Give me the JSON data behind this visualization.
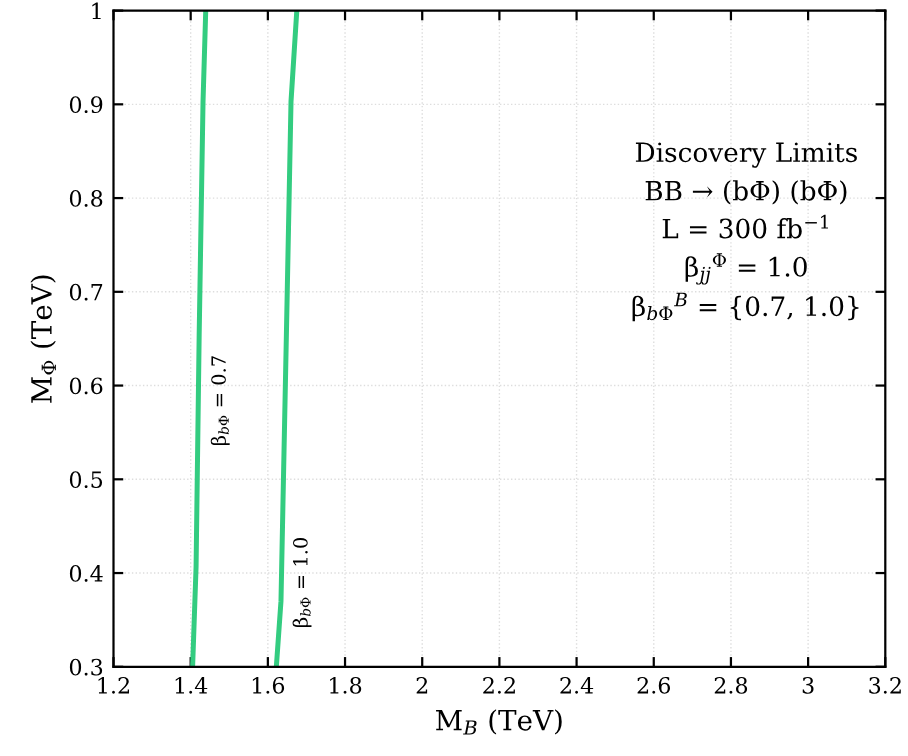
{
  "chart_data": {
    "type": "line",
    "xlabel": "M$_{B}$ (TeV)",
    "ylabel": "M$_{Φ}$ (TeV)",
    "series": [
      {
        "name": "β$_{bΦ}$ = 0.7",
        "color": "#33cc80",
        "x": [
          1.405,
          1.414,
          1.422,
          1.432,
          1.439
        ],
        "values": [
          0.3,
          0.407,
          0.654,
          0.903,
          1.0
        ]
      },
      {
        "name": "β$_{bΦ}$ = 1.0",
        "color": "#33cc80",
        "x": [
          1.622,
          1.634,
          1.648,
          1.66,
          1.675
        ],
        "values": [
          0.3,
          0.37,
          0.654,
          0.903,
          1.0
        ]
      }
    ],
    "annotations": [
      "Discovery Limits",
      "BB → (bΦ) (bΦ)",
      "L = 300 fb$^{−1}$",
      "β$_{jj}$$^{Φ}$ = 1.0",
      "β$_{bΦ}$$^{B}$ = {0.7, 1.0}"
    ],
    "xlim": [
      1.2,
      3.2
    ],
    "ylim": [
      0.3,
      1
    ],
    "xticks": [
      1.2,
      1.4,
      1.6,
      1.8,
      2,
      2.2,
      2.4,
      2.6,
      2.8,
      3,
      3.2
    ],
    "yticks": [
      0.3,
      0.4,
      0.5,
      0.6,
      0.7,
      0.8,
      0.9,
      1
    ],
    "grid": true,
    "legend": false,
    "marker": "none",
    "line_style": "solid"
  }
}
